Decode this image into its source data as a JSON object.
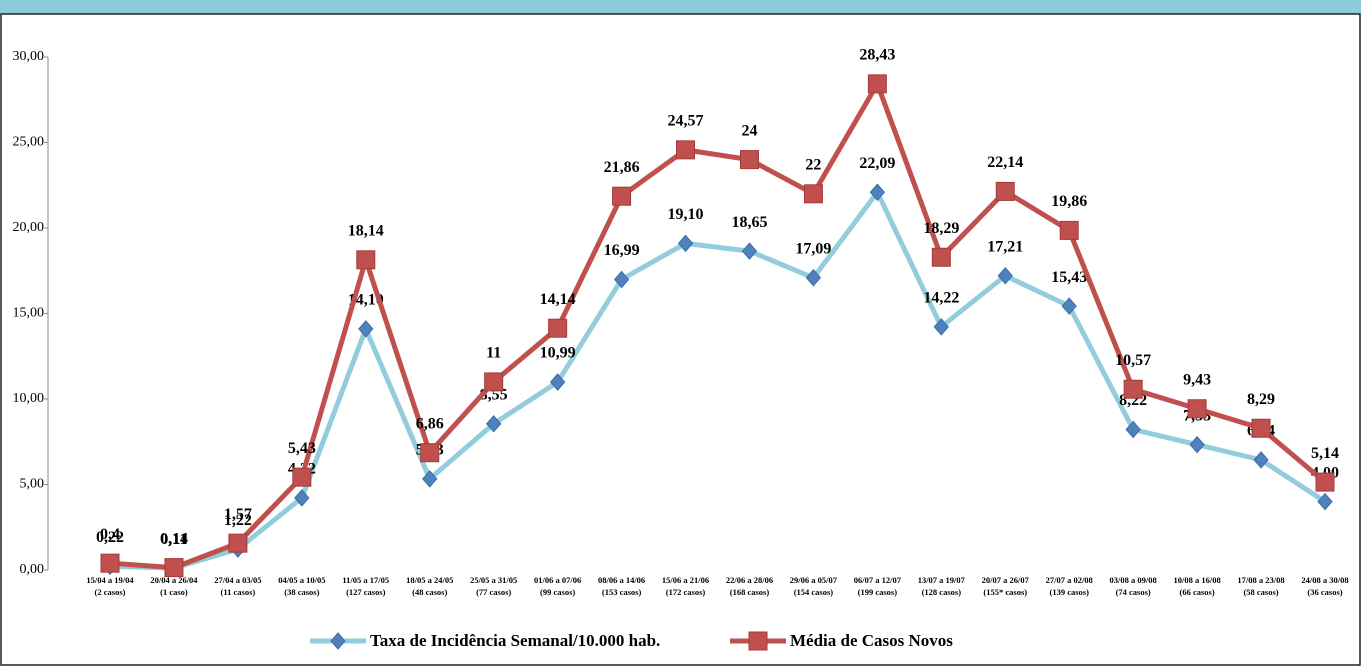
{
  "chart_data": {
    "type": "line",
    "categories": [
      [
        "15/04 a 19/04",
        "(2 casos)"
      ],
      [
        "20/04 a 26/04",
        "(1 caso)"
      ],
      [
        "27/04 a 03/05",
        "(11 casos)"
      ],
      [
        "04/05 a 10/05",
        "(38 casos)"
      ],
      [
        "11/05 a 17/05",
        "(127 casos)"
      ],
      [
        "18/05 a 24/05",
        "(48 casos)"
      ],
      [
        "25/05 a 31/05",
        "(77 casos)"
      ],
      [
        "01/06 a 07/06",
        "(99 casos)"
      ],
      [
        "08/06 a 14/06",
        "(153 casos)"
      ],
      [
        "15/06 a 21/06",
        "(172 casos)"
      ],
      [
        "22/06 a 28/06",
        "(168 casos)"
      ],
      [
        "29/06 a 05/07",
        "(154 casos)"
      ],
      [
        "06/07 a 12/07",
        "(199 casos)"
      ],
      [
        "13/07 a 19/07",
        "(128 casos)"
      ],
      [
        "20/07 a 26/07",
        "(155* casos)"
      ],
      [
        "27/07 a 02/08",
        "(139 casos)"
      ],
      [
        "03/08 a 09/08",
        "(74 casos)"
      ],
      [
        "10/08 a 16/08",
        "(66 casos)"
      ],
      [
        "17/08 a 23/08",
        "(58 casos)"
      ],
      [
        "24/08 a 30/08",
        "(36 casos)"
      ]
    ],
    "series": [
      {
        "name": "Taxa de Incidência Semanal/10.000 hab.",
        "color": "#93cddd",
        "marker": "diamond",
        "marker_color": "#4f81bd",
        "values": [
          0.22,
          0.11,
          1.22,
          4.22,
          14.1,
          5.33,
          8.55,
          10.99,
          16.99,
          19.1,
          18.65,
          17.09,
          22.09,
          14.22,
          17.21,
          15.43,
          8.22,
          7.33,
          6.44,
          4.0
        ],
        "value_labels": [
          "0,22",
          "0,11",
          "1,22",
          "4,22",
          "14,10",
          "5,33",
          "8,55",
          "10,99",
          "16,99",
          "19,10",
          "18,65",
          "17,09",
          "22,09",
          "14,22",
          "17,21",
          "15,43",
          "8,22",
          "7,33",
          "6,44",
          "4,00"
        ]
      },
      {
        "name": "Média de Casos Novos",
        "color": "#c0504d",
        "marker": "square",
        "marker_color": "#c0504d",
        "values": [
          0.4,
          0.14,
          1.57,
          5.43,
          18.14,
          6.86,
          11,
          14.14,
          21.86,
          24.57,
          24,
          22,
          28.43,
          18.29,
          22.14,
          19.86,
          10.57,
          9.43,
          8.29,
          5.14
        ],
        "value_labels": [
          "0,4",
          "0,14",
          "1,57",
          "5,43",
          "18,14",
          "6,86",
          "11",
          "14,14",
          "21,86",
          "24,57",
          "24",
          "22",
          "28,43",
          "18,29",
          "22,14",
          "19,86",
          "10,57",
          "9,43",
          "8,29",
          "5,14"
        ]
      }
    ],
    "ylim": [
      0,
      30
    ],
    "yticks": [
      {
        "value": 0,
        "label": "0,00"
      },
      {
        "value": 5,
        "label": "5,00"
      },
      {
        "value": 10,
        "label": "10,00"
      },
      {
        "value": 15,
        "label": "15,00"
      },
      {
        "value": 20,
        "label": "20,00"
      },
      {
        "value": 25,
        "label": "25,00"
      },
      {
        "value": 30,
        "label": "30,00"
      }
    ],
    "grid": false
  }
}
